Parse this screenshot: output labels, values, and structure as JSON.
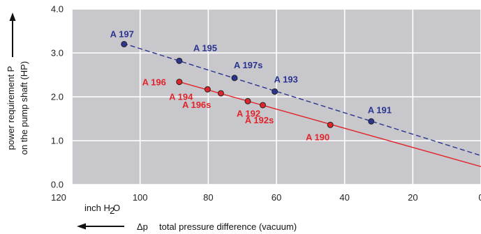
{
  "chart_data": {
    "type": "scatter",
    "xlim": [
      120,
      0
    ],
    "ylim": [
      0.0,
      4.0
    ],
    "x_ticks": [
      120,
      100,
      80,
      60,
      40,
      20,
      0
    ],
    "y_ticks": [
      "0.0",
      "1.0",
      "2.0",
      "3.0",
      "4.0"
    ],
    "grid": true,
    "plot_background": "#c8c8cc",
    "ylabel_line1": "power requirement P",
    "ylabel_line2": "on the pump shaft (HP)",
    "xlabel_symbol": "Δp",
    "xlabel": "total pressure difference (vacuum)",
    "x_unit_main": "inch H",
    "x_unit_sub": "2",
    "x_unit_tail": "O",
    "series": [
      {
        "color": "#2b3490",
        "line_style": "dashed",
        "trend": [
          [
            105,
            3.22
          ],
          [
            0,
            0.66
          ]
        ],
        "points": [
          {
            "label": "A 197",
            "x": 104.7,
            "y": 3.2
          },
          {
            "label": "A 195",
            "x": 88.5,
            "y": 2.82
          },
          {
            "label": "A 197s",
            "x": 72.3,
            "y": 2.43
          },
          {
            "label": "A 193",
            "x": 60.5,
            "y": 2.12
          },
          {
            "label": "A 191",
            "x": 32.2,
            "y": 1.44
          }
        ]
      },
      {
        "color": "#e0242b",
        "line_style": "solid",
        "trend": [
          [
            88.5,
            2.34
          ],
          [
            0,
            0.41
          ]
        ],
        "points": [
          {
            "label": "A 196",
            "x": 88.5,
            "y": 2.34
          },
          {
            "label": "A 194",
            "x": 80.2,
            "y": 2.17
          },
          {
            "label": "A 196s",
            "x": 76.3,
            "y": 2.08
          },
          {
            "label": "A 192",
            "x": 68.4,
            "y": 1.9
          },
          {
            "label": "A 192s",
            "x": 64.0,
            "y": 1.81
          },
          {
            "label": "A 190",
            "x": 44.2,
            "y": 1.36
          }
        ]
      }
    ]
  }
}
